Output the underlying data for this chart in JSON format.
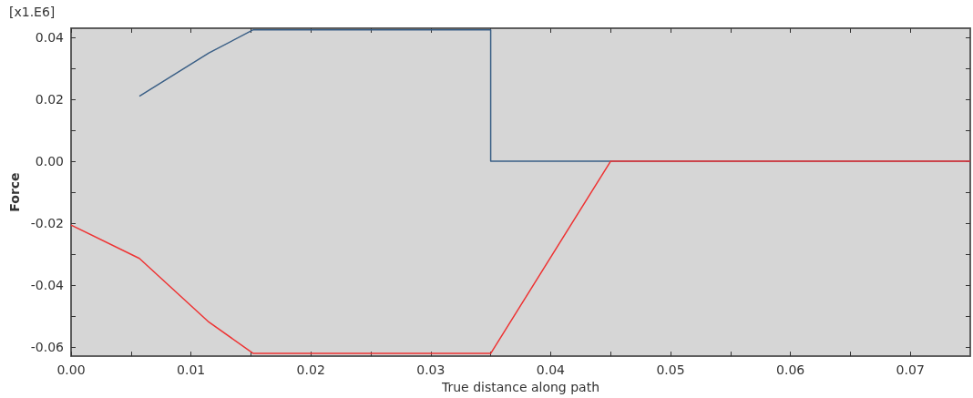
{
  "chart_data": {
    "type": "line",
    "xlabel": "True distance along path",
    "ylabel": "Force",
    "annotations": [
      "[x1.E6]"
    ],
    "xlim": [
      0,
      0.075
    ],
    "ylim": [
      -0.063,
      0.043
    ],
    "xticks": [
      {
        "value": 0,
        "label": "0.00"
      },
      {
        "value": 0.005,
        "label": null
      },
      {
        "value": 0.01,
        "label": "0.01"
      },
      {
        "value": 0.015,
        "label": null
      },
      {
        "value": 0.02,
        "label": "0.02"
      },
      {
        "value": 0.025,
        "label": null
      },
      {
        "value": 0.03,
        "label": "0.03"
      },
      {
        "value": 0.035,
        "label": null
      },
      {
        "value": 0.04,
        "label": "0.04"
      },
      {
        "value": 0.045,
        "label": null
      },
      {
        "value": 0.05,
        "label": "0.05"
      },
      {
        "value": 0.055,
        "label": null
      },
      {
        "value": 0.06,
        "label": "0.06"
      },
      {
        "value": 0.065,
        "label": null
      },
      {
        "value": 0.07,
        "label": "0.07"
      }
    ],
    "yticks": [
      {
        "value": -0.06,
        "label": "-0.06"
      },
      {
        "value": -0.05,
        "label": null
      },
      {
        "value": -0.04,
        "label": "-0.04"
      },
      {
        "value": -0.03,
        "label": null
      },
      {
        "value": -0.02,
        "label": "-0.02"
      },
      {
        "value": -0.01,
        "label": null
      },
      {
        "value": 0,
        "label": "0.00"
      },
      {
        "value": 0.01,
        "label": null
      },
      {
        "value": 0.02,
        "label": "0.02"
      },
      {
        "value": 0.03,
        "label": null
      },
      {
        "value": 0.04,
        "label": "0.04"
      }
    ],
    "grid": false,
    "marker": "none",
    "line_style": "solid",
    "series": [
      {
        "color": "#3a5f86",
        "x": [
          0.0057,
          0.0115,
          0.0152,
          0.035,
          0.035,
          0.075
        ],
        "values": [
          0.021,
          0.035,
          0.0425,
          0.0425,
          0,
          0
        ]
      },
      {
        "color": "#ee3333",
        "x": [
          0,
          0.0057,
          0.0115,
          0.0152,
          0.035,
          0.045,
          0.075
        ],
        "values": [
          -0.0206,
          -0.0314,
          -0.052,
          -0.0621,
          -0.0621,
          0,
          0
        ]
      }
    ]
  }
}
